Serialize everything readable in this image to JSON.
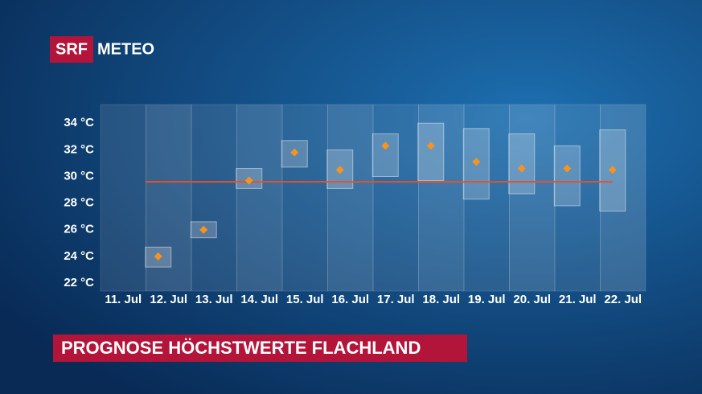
{
  "header": {
    "logo": "SRF",
    "brand": "METEO"
  },
  "chart_data": {
    "type": "range",
    "title": "PROGNOSE HÖCHSTWERTE FLACHLAND",
    "categories": [
      "11. Jul",
      "12. Jul",
      "13. Jul",
      "14. Jul",
      "15. Jul",
      "16. Jul",
      "17. Jul",
      "18. Jul",
      "19. Jul",
      "20. Jul",
      "21. Jul",
      "22. Jul"
    ],
    "values": [
      null,
      24.0,
      26.0,
      29.7,
      31.8,
      30.5,
      32.3,
      32.3,
      31.1,
      30.6,
      30.6,
      30.5
    ],
    "low": [
      null,
      23.2,
      25.4,
      29.1,
      30.7,
      29.1,
      30.0,
      29.7,
      28.3,
      28.7,
      27.8,
      27.4
    ],
    "high": [
      null,
      24.7,
      26.6,
      30.6,
      32.7,
      32.0,
      33.2,
      34.0,
      33.6,
      33.2,
      32.3,
      33.5
    ],
    "reference": 29.6,
    "color": "#f7931e",
    "reference_color": "#e8502a",
    "ylim": [
      21.4,
      35.4
    ],
    "yticks": [
      {
        "value": 22,
        "label": "22 °C"
      },
      {
        "value": 24,
        "label": "24 °C"
      },
      {
        "value": 26,
        "label": "26 °C"
      },
      {
        "value": 28,
        "label": "28 °C"
      },
      {
        "value": 30,
        "label": "30 °C"
      },
      {
        "value": 32,
        "label": "32 °C"
      },
      {
        "value": 34,
        "label": "34 °C"
      }
    ]
  }
}
